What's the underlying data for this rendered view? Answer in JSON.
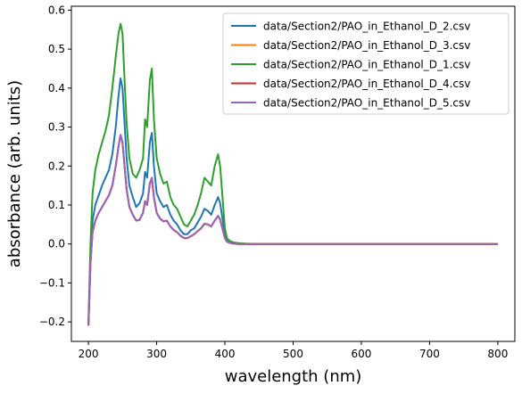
{
  "chart_data": {
    "type": "line",
    "title": "",
    "xlabel": "wavelength (nm)",
    "ylabel": "absorbance (arb. units)",
    "xlim": [
      175,
      825
    ],
    "ylim": [
      -0.25,
      0.61
    ],
    "xticks": [
      200,
      300,
      400,
      500,
      600,
      700,
      800
    ],
    "yticks": [
      -0.2,
      -0.1,
      0.0,
      0.1,
      0.2,
      0.3,
      0.4,
      0.5,
      0.6
    ],
    "xtick_labels": [
      "200",
      "300",
      "400",
      "500",
      "600",
      "700",
      "800"
    ],
    "ytick_labels": [
      "−0.2",
      "−0.1",
      "0.0",
      "0.1",
      "0.2",
      "0.3",
      "0.4",
      "0.5",
      "0.6"
    ],
    "legend_position": "upper-right",
    "grid": false,
    "x": [
      200,
      203,
      206,
      210,
      215,
      220,
      225,
      230,
      235,
      240,
      244,
      247,
      250,
      253,
      256,
      260,
      265,
      270,
      275,
      280,
      283,
      286,
      290,
      293,
      296,
      300,
      305,
      310,
      315,
      320,
      325,
      330,
      335,
      340,
      345,
      350,
      355,
      360,
      365,
      370,
      375,
      380,
      385,
      390,
      393,
      397,
      400,
      403,
      407,
      412,
      420,
      430,
      450,
      500,
      550,
      600,
      650,
      700,
      750,
      800
    ],
    "series": [
      {
        "name": "data/Section2/PAO_in_Ethanol_D_2.csv",
        "color": "#1f77b4",
        "values": [
          -0.21,
          -0.05,
          0.06,
          0.1,
          0.125,
          0.15,
          0.17,
          0.19,
          0.23,
          0.3,
          0.38,
          0.425,
          0.4,
          0.31,
          0.22,
          0.15,
          0.12,
          0.095,
          0.105,
          0.13,
          0.185,
          0.17,
          0.26,
          0.285,
          0.2,
          0.13,
          0.11,
          0.095,
          0.1,
          0.075,
          0.06,
          0.05,
          0.035,
          0.025,
          0.025,
          0.035,
          0.04,
          0.055,
          0.07,
          0.09,
          0.085,
          0.075,
          0.1,
          0.12,
          0.105,
          0.06,
          0.025,
          0.01,
          0.005,
          0.002,
          0.001,
          0.0,
          0.0,
          0.0,
          0.0,
          0.0,
          0.0,
          0.0,
          0.0,
          0.0
        ]
      },
      {
        "name": "data/Section2/PAO_in_Ethanol_D_3.csv",
        "color": "#ff7f0e",
        "values": [
          -0.21,
          -0.05,
          0.03,
          0.06,
          0.08,
          0.095,
          0.11,
          0.125,
          0.15,
          0.2,
          0.25,
          0.28,
          0.26,
          0.2,
          0.14,
          0.095,
          0.075,
          0.06,
          0.062,
          0.08,
          0.11,
          0.1,
          0.155,
          0.17,
          0.12,
          0.08,
          0.065,
          0.058,
          0.06,
          0.045,
          0.036,
          0.03,
          0.021,
          0.015,
          0.015,
          0.02,
          0.025,
          0.033,
          0.04,
          0.052,
          0.05,
          0.045,
          0.06,
          0.072,
          0.063,
          0.036,
          0.015,
          0.006,
          0.003,
          0.001,
          0.0,
          0.0,
          0.0,
          0.0,
          0.0,
          0.0,
          0.0,
          0.0,
          0.0,
          0.0
        ]
      },
      {
        "name": "data/Section2/PAO_in_Ethanol_D_1.csv",
        "color": "#2ca02c",
        "values": [
          -0.2,
          0.0,
          0.13,
          0.19,
          0.23,
          0.26,
          0.29,
          0.33,
          0.4,
          0.48,
          0.54,
          0.565,
          0.54,
          0.42,
          0.31,
          0.22,
          0.18,
          0.17,
          0.19,
          0.22,
          0.32,
          0.3,
          0.42,
          0.45,
          0.32,
          0.22,
          0.18,
          0.155,
          0.16,
          0.12,
          0.1,
          0.09,
          0.07,
          0.05,
          0.045,
          0.06,
          0.075,
          0.1,
          0.13,
          0.17,
          0.16,
          0.15,
          0.2,
          0.23,
          0.2,
          0.11,
          0.04,
          0.015,
          0.008,
          0.004,
          0.002,
          0.001,
          0.0,
          0.0,
          0.0,
          0.0,
          0.0,
          0.0,
          0.0,
          0.0
        ]
      },
      {
        "name": "data/Section2/PAO_in_Ethanol_D_4.csv",
        "color": "#d62728",
        "values": [
          -0.21,
          -0.05,
          0.03,
          0.06,
          0.08,
          0.095,
          0.11,
          0.125,
          0.15,
          0.2,
          0.25,
          0.28,
          0.26,
          0.2,
          0.14,
          0.095,
          0.075,
          0.06,
          0.062,
          0.08,
          0.11,
          0.1,
          0.155,
          0.17,
          0.12,
          0.08,
          0.065,
          0.058,
          0.06,
          0.045,
          0.036,
          0.03,
          0.021,
          0.015,
          0.015,
          0.02,
          0.025,
          0.033,
          0.04,
          0.052,
          0.05,
          0.045,
          0.06,
          0.072,
          0.063,
          0.036,
          0.015,
          0.006,
          0.003,
          0.001,
          0.0,
          0.0,
          0.0,
          0.0,
          0.0,
          0.0,
          0.0,
          0.0,
          0.0,
          0.0
        ]
      },
      {
        "name": "data/Section2/PAO_in_Ethanol_D_5.csv",
        "color": "#9467bd",
        "values": [
          -0.21,
          -0.05,
          0.03,
          0.06,
          0.08,
          0.095,
          0.11,
          0.125,
          0.15,
          0.2,
          0.25,
          0.28,
          0.26,
          0.2,
          0.14,
          0.095,
          0.075,
          0.06,
          0.062,
          0.08,
          0.11,
          0.1,
          0.155,
          0.17,
          0.12,
          0.08,
          0.065,
          0.058,
          0.06,
          0.045,
          0.036,
          0.03,
          0.021,
          0.015,
          0.015,
          0.02,
          0.025,
          0.033,
          0.04,
          0.052,
          0.05,
          0.045,
          0.06,
          0.072,
          0.063,
          0.036,
          0.015,
          0.006,
          0.003,
          0.001,
          0.0,
          0.0,
          0.0,
          0.0,
          0.0,
          0.0,
          0.0,
          0.0,
          0.0,
          0.0
        ]
      }
    ]
  }
}
